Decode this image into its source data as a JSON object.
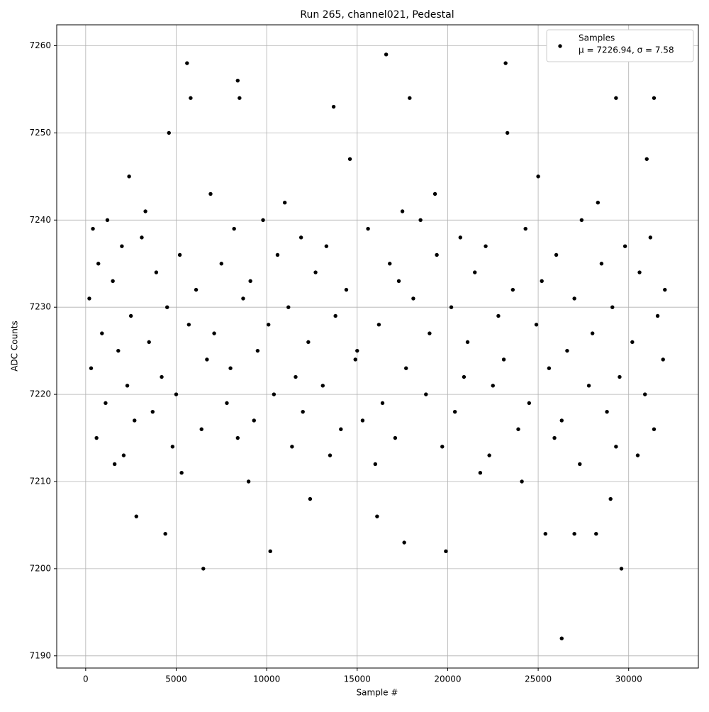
{
  "chart_data": {
    "type": "scatter",
    "title": "Run 265, channel021, Pedestal",
    "x_label": "Sample #",
    "y_label": "ADC Counts",
    "legend_annotation": "μ = 7226.94, σ = 7.58",
    "legend_position": "upper right",
    "grid": true,
    "xlim": [
      -1600,
      33850
    ],
    "ylim": [
      7188.6,
      7262.4
    ],
    "xticks": [
      0,
      5000,
      10000,
      15000,
      20000,
      25000,
      30000
    ],
    "yticks": [
      7190,
      7200,
      7210,
      7220,
      7230,
      7240,
      7250,
      7260
    ],
    "series": [
      {
        "name": "Samples",
        "color": "#000000",
        "x": [
          1200,
          9800,
          18500,
          27400,
          400,
          8200,
          15600,
          24300,
          3100,
          11900,
          20700,
          31200,
          2000,
          13300,
          22100,
          29800,
          5200,
          10600,
          19400,
          26000,
          700,
          7500,
          16800,
          28500,
          3900,
          12700,
          21500,
          30600,
          1500,
          9100,
          17300,
          25200,
          6100,
          14400,
          23600,
          32000,
          200,
          8700,
          18100,
          27000,
          4500,
          11200,
          20200,
          29100,
          2500,
          13800,
          22800,
          31600,
          5700,
          10100,
          16200,
          24900,
          900,
          7100,
          19000,
          28000,
          3500,
          12300,
          21100,
          30200,
          1800,
          9500,
          15000,
          26600,
          6700,
          14900,
          23100,
          31900,
          300,
          8000,
          17700,
          25600,
          4200,
          11600,
          20900,
          29500,
          2300,
          13100,
          22500,
          27800,
          5000,
          10400,
          18800,
          30900,
          1100,
          7800,
          16400,
          24500,
          3700,
          12000,
          20400,
          28800,
          2700,
          9300,
          15300,
          26300,
          6400,
          14100,
          23900,
          31400,
          600,
          8400,
          17100,
          25900,
          4800,
          11400,
          19700,
          29300,
          2100,
          13500,
          22300,
          30500,
          1600,
          16000,
          27300,
          5300,
          21800,
          9000,
          24100,
          3300,
          17500,
          11000,
          28300,
          6900,
          19300,
          2400,
          25000,
          14600,
          31000,
          4600,
          23300,
          12400,
          29000,
          2800,
          16100,
          6500,
          26300,
          10200,
          17600,
          19900,
          29600,
          4400,
          25400,
          27000,
          28200,
          5600,
          16600,
          23200,
          8400,
          29300,
          31400,
          17900,
          5800,
          8500,
          13700
        ],
        "values": [
          7240,
          7240,
          7240,
          7240,
          7239,
          7239,
          7239,
          7239,
          7238,
          7238,
          7238,
          7238,
          7237,
          7237,
          7237,
          7237,
          7236,
          7236,
          7236,
          7236,
          7235,
          7235,
          7235,
          7235,
          7234,
          7234,
          7234,
          7234,
          7233,
          7233,
          7233,
          7233,
          7232,
          7232,
          7232,
          7232,
          7231,
          7231,
          7231,
          7231,
          7230,
          7230,
          7230,
          7230,
          7229,
          7229,
          7229,
          7229,
          7228,
          7228,
          7228,
          7228,
          7227,
          7227,
          7227,
          7227,
          7226,
          7226,
          7226,
          7226,
          7225,
          7225,
          7225,
          7225,
          7224,
          7224,
          7224,
          7224,
          7223,
          7223,
          7223,
          7223,
          7222,
          7222,
          7222,
          7222,
          7221,
          7221,
          7221,
          7221,
          7220,
          7220,
          7220,
          7220,
          7219,
          7219,
          7219,
          7219,
          7218,
          7218,
          7218,
          7218,
          7217,
          7217,
          7217,
          7217,
          7216,
          7216,
          7216,
          7216,
          7215,
          7215,
          7215,
          7215,
          7214,
          7214,
          7214,
          7214,
          7213,
          7213,
          7213,
          7213,
          7212,
          7212,
          7212,
          7211,
          7211,
          7210,
          7210,
          7241,
          7241,
          7242,
          7242,
          7243,
          7243,
          7245,
          7245,
          7247,
          7247,
          7250,
          7250,
          7208,
          7208,
          7206,
          7206,
          7200,
          7192,
          7202,
          7203,
          7202,
          7200,
          7204,
          7204,
          7204,
          7204,
          7258,
          7259,
          7258,
          7256,
          7254,
          7254,
          7254,
          7254,
          7254,
          7253
        ]
      }
    ]
  }
}
